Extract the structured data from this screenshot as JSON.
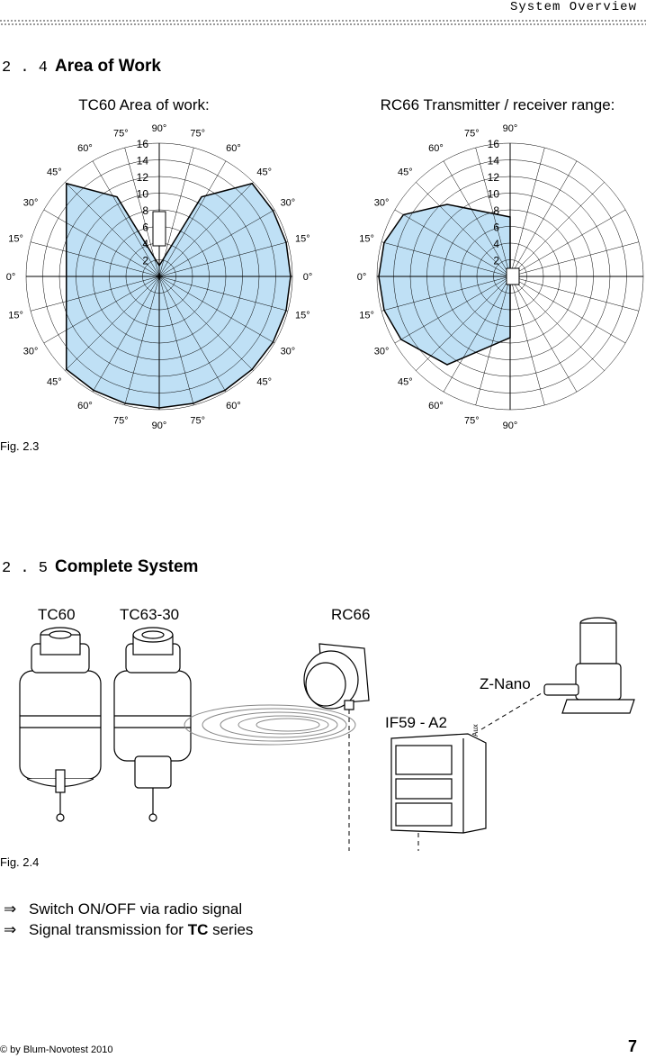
{
  "header": {
    "title": "System Overview"
  },
  "section_2_4": {
    "number": "2 . 4",
    "title": "Area of Work",
    "diagrams": [
      {
        "title": "TC60 Area of work:",
        "angle_labels": [
          "90°",
          "75°",
          "60°",
          "45°",
          "30°",
          "15°",
          "0°",
          "15°",
          "30°",
          "45°",
          "60°",
          "75°",
          "90°",
          "75°",
          "60°",
          "45°",
          "30°",
          "15°",
          "0°",
          "15°",
          "30°",
          "45°",
          "60°",
          "75°"
        ],
        "radius_labels": [
          "16",
          "14",
          "12",
          "10",
          "8",
          "6",
          "4",
          "2"
        ]
      },
      {
        "title": "RC66 Transmitter / receiver range:",
        "angle_labels": [
          "90°",
          "75°",
          "60°",
          "45°",
          "30°",
          "15°",
          "0°",
          "15°",
          "30°",
          "45°",
          "60°",
          "75°",
          "90°"
        ],
        "radius_labels": [
          "16",
          "14",
          "12",
          "10",
          "8",
          "6",
          "4",
          "2"
        ]
      }
    ],
    "caption": "Fig. 2.3"
  },
  "section_2_5": {
    "number": "2 . 5",
    "title": "Complete System",
    "labels": [
      "TC60",
      "TC63-30",
      "RC66",
      "Z-Nano",
      "IF59 - A2"
    ],
    "aux": "Aux",
    "caption": "Fig. 2.4"
  },
  "bullets": [
    {
      "marker": "⇒",
      "text": "Switch ON/OFF via radio signal"
    },
    {
      "marker": "⇒",
      "before": "Signal transmission for ",
      "bold": "TC",
      "after": " series"
    }
  ],
  "footer": {
    "copyright": "© by Blum-Novotest 2010",
    "page": "7"
  }
}
